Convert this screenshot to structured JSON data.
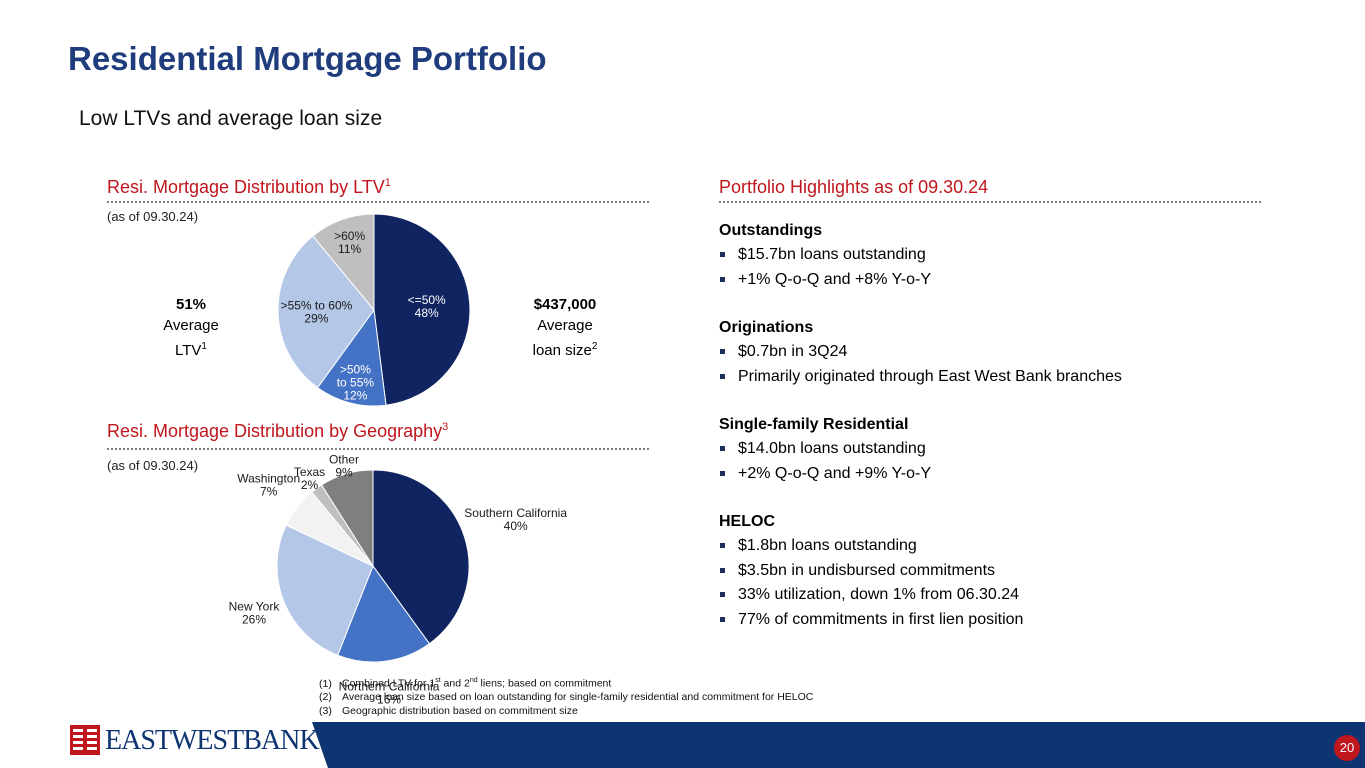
{
  "header": {
    "title": "Residential Mortgage Portfolio",
    "subtitle": "Low LTVs and average loan size"
  },
  "ltv_section": {
    "title": "Resi. Mortgage Distribution by LTV",
    "title_sup": "1",
    "as_of": "(as of 09.30.24)",
    "left_stat": {
      "value": "51%",
      "line1": "Average",
      "line2": "LTV",
      "sup": "1"
    },
    "right_stat": {
      "value": "$437,000",
      "line1": "Average",
      "line2": "loan size",
      "sup": "2"
    }
  },
  "geo_section": {
    "title": "Resi. Mortgage Distribution by Geography",
    "title_sup": "3",
    "as_of": "(as of 09.30.24)"
  },
  "chart_data": [
    {
      "type": "pie",
      "title": "Resi. Mortgage Distribution by LTV",
      "slices": [
        {
          "label": "<=50%",
          "label_lines": [
            "<=50%"
          ],
          "value": 48,
          "value_label": "48%",
          "color": "#0f2460"
        },
        {
          "label": ">50% to 55%",
          "label_lines": [
            ">50%",
            "to 55%"
          ],
          "value": 12,
          "value_label": "12%",
          "color": "#4472c4"
        },
        {
          "label": ">55% to 60%",
          "label_lines": [
            ">55% to 60%"
          ],
          "value": 29,
          "value_label": "29%",
          "color": "#b4c7e7"
        },
        {
          "label": ">60%",
          "label_lines": [
            ">60%"
          ],
          "value": 11,
          "value_label": "11%",
          "color": "#bfbfbf"
        }
      ]
    },
    {
      "type": "pie",
      "title": "Resi. Mortgage Distribution by Geography",
      "slices": [
        {
          "label": "Southern California",
          "value": 40,
          "value_label": "40%",
          "color": "#0f2460"
        },
        {
          "label": "Northern California",
          "value": 16,
          "value_label": "16%",
          "color": "#4472c4"
        },
        {
          "label": "New York",
          "value": 26,
          "value_label": "26%",
          "color": "#b4c7e7"
        },
        {
          "label": "Washington",
          "value": 7,
          "value_label": "7%",
          "color": "#f2f2f2"
        },
        {
          "label": "Texas",
          "value": 2,
          "value_label": "2%",
          "color": "#bfbfbf"
        },
        {
          "label": "Other",
          "value": 9,
          "value_label": "9%",
          "color": "#7f7f7f"
        }
      ]
    }
  ],
  "highlights": {
    "title": "Portfolio Highlights as of 09.30.24",
    "groups": [
      {
        "heading": "Outstandings",
        "items": [
          "$15.7bn loans outstanding",
          "+1% Q-o-Q and +8% Y-o-Y"
        ]
      },
      {
        "heading": "Originations",
        "items": [
          "$0.7bn in 3Q24",
          "Primarily originated through East West Bank branches"
        ]
      },
      {
        "heading": "Single-family Residential",
        "items": [
          "$14.0bn loans outstanding",
          "+2% Q-o-Q and +9% Y-o-Y"
        ]
      },
      {
        "heading": "HELOC",
        "items": [
          "$1.8bn loans outstanding",
          "$3.5bn in undisbursed commitments",
          "33% utilization, down 1% from 06.30.24",
          "77% of commitments in first lien position"
        ]
      }
    ]
  },
  "footnotes": [
    {
      "num": "(1)",
      "pre": "Combined LTV for 1",
      "sup1": "st",
      "mid": " and 2",
      "sup2": "nd",
      "post": " liens; based on commitment"
    },
    {
      "num": "(2)",
      "text": "Average loan size based on loan outstanding for single-family residential and commitment for HELOC"
    },
    {
      "num": "(3)",
      "text": "Geographic distribution based on commitment size"
    }
  ],
  "footer": {
    "bank_name": "EASTWESTBANK",
    "logo_colors": {
      "red": "#c0161d",
      "navy": "#0f3472"
    },
    "page_number": "20"
  }
}
